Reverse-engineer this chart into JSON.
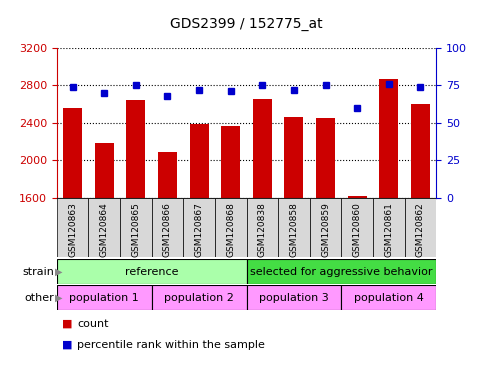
{
  "title": "GDS2399 / 152775_at",
  "samples": [
    "GSM120863",
    "GSM120864",
    "GSM120865",
    "GSM120866",
    "GSM120867",
    "GSM120868",
    "GSM120838",
    "GSM120858",
    "GSM120859",
    "GSM120860",
    "GSM120861",
    "GSM120862"
  ],
  "counts": [
    2560,
    2180,
    2640,
    2090,
    2390,
    2370,
    2660,
    2460,
    2450,
    1620,
    2870,
    2600
  ],
  "percentiles": [
    74,
    70,
    75,
    68,
    72,
    71,
    75,
    72,
    75,
    60,
    76,
    74
  ],
  "ylim_left": [
    1600,
    3200
  ],
  "ylim_right": [
    0,
    100
  ],
  "yticks_left": [
    1600,
    2000,
    2400,
    2800,
    3200
  ],
  "yticks_right": [
    0,
    25,
    50,
    75,
    100
  ],
  "bar_color": "#cc0000",
  "dot_color": "#0000cc",
  "strain_labels": [
    {
      "text": "reference",
      "start": 0,
      "end": 6,
      "color": "#aaffaa"
    },
    {
      "text": "selected for aggressive behavior",
      "start": 6,
      "end": 12,
      "color": "#44dd44"
    }
  ],
  "other_labels": [
    {
      "text": "population 1",
      "start": 0,
      "end": 3,
      "color": "#ff99ff"
    },
    {
      "text": "population 2",
      "start": 3,
      "end": 6,
      "color": "#ff99ff"
    },
    {
      "text": "population 3",
      "start": 6,
      "end": 9,
      "color": "#ff99ff"
    },
    {
      "text": "population 4",
      "start": 9,
      "end": 12,
      "color": "#ff99ff"
    }
  ],
  "legend_count_color": "#cc0000",
  "legend_pct_color": "#0000cc",
  "tick_label_color_left": "#cc0000",
  "tick_label_color_right": "#0000cc",
  "bg_color": "#ffffff",
  "label_row_bg": "#cccccc",
  "n_samples": 12
}
